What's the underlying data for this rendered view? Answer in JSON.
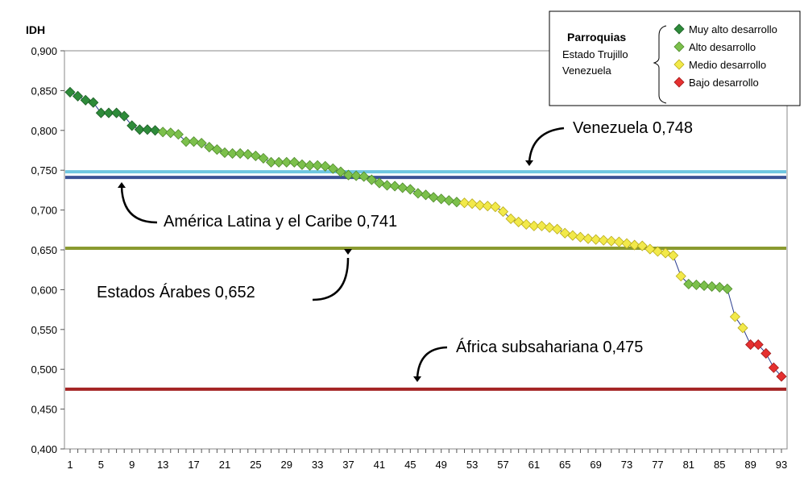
{
  "chart_data": {
    "type": "scatter",
    "ylabel": "IDH",
    "ylim": [
      0.4,
      0.9
    ],
    "xlim": [
      1,
      93
    ],
    "y_ticks": [
      "0,400",
      "0,450",
      "0,500",
      "0,550",
      "0,600",
      "0,650",
      "0,700",
      "0,750",
      "0,800",
      "0,850",
      "0,900"
    ],
    "x_ticks": [
      "1",
      "5",
      "9",
      "13",
      "17",
      "21",
      "25",
      "29",
      "33",
      "37",
      "41",
      "45",
      "49",
      "53",
      "57",
      "61",
      "65",
      "69",
      "73",
      "77",
      "81",
      "85",
      "89",
      "93"
    ],
    "grid": false,
    "connect_points": true,
    "legend": {
      "position": "top-right",
      "title": "Parroquias",
      "subtitle_lines": [
        "Estado Trujillo",
        "Venezuela"
      ],
      "entries": [
        {
          "label": "Muy alto desarrollo",
          "color": "#2e8b3a"
        },
        {
          "label": "Alto desarrollo",
          "color": "#7cc04c"
        },
        {
          "label": "Medio desarrollo",
          "color": "#f2e94a"
        },
        {
          "label": "Bajo desarrollo",
          "color": "#e53030"
        }
      ]
    },
    "categories": [
      "Muy alto desarrollo",
      "Alto desarrollo",
      "Medio desarrollo",
      "Bajo desarrollo"
    ],
    "values": [
      0.848,
      0.843,
      0.838,
      0.835,
      0.822,
      0.822,
      0.822,
      0.818,
      0.806,
      0.801,
      0.801,
      0.8,
      0.798,
      0.797,
      0.795,
      0.786,
      0.786,
      0.784,
      0.779,
      0.776,
      0.772,
      0.771,
      0.771,
      0.77,
      0.768,
      0.765,
      0.76,
      0.76,
      0.76,
      0.76,
      0.757,
      0.756,
      0.756,
      0.755,
      0.752,
      0.748,
      0.744,
      0.743,
      0.742,
      0.738,
      0.734,
      0.731,
      0.73,
      0.728,
      0.726,
      0.721,
      0.719,
      0.716,
      0.714,
      0.712,
      0.71,
      0.709,
      0.708,
      0.706,
      0.705,
      0.704,
      0.698,
      0.689,
      0.685,
      0.682,
      0.68,
      0.68,
      0.678,
      0.676,
      0.671,
      0.668,
      0.666,
      0.664,
      0.663,
      0.662,
      0.661,
      0.66,
      0.658,
      0.656,
      0.655,
      0.651,
      0.648,
      0.646,
      0.643,
      0.617,
      0.607,
      0.606,
      0.605,
      0.604,
      0.603,
      0.601,
      0.566,
      0.552,
      0.531,
      0.531,
      0.52,
      0.502,
      0.491
    ],
    "categories_per_point": [
      0,
      0,
      0,
      0,
      0,
      0,
      0,
      0,
      0,
      0,
      0,
      0,
      1,
      1,
      1,
      1,
      1,
      1,
      1,
      1,
      1,
      1,
      1,
      1,
      1,
      1,
      1,
      1,
      1,
      1,
      1,
      1,
      1,
      1,
      1,
      1,
      1,
      1,
      1,
      1,
      1,
      1,
      1,
      1,
      1,
      1,
      1,
      1,
      1,
      1,
      1,
      2,
      2,
      2,
      2,
      2,
      2,
      2,
      2,
      2,
      2,
      2,
      2,
      2,
      2,
      2,
      2,
      2,
      2,
      2,
      2,
      2,
      2,
      2,
      2,
      2,
      2,
      2,
      2,
      2,
      1,
      1,
      1,
      1,
      1,
      1,
      2,
      2,
      3,
      3,
      3,
      3,
      3
    ],
    "reference_lines": [
      {
        "label": "Venezuela  0,748",
        "value": 0.748,
        "color": "#6ec6e0"
      },
      {
        "label": "América Latina y el Caribe  0,741",
        "value": 0.741,
        "color": "#3b5296"
      },
      {
        "label": "Estados Árabes  0,652",
        "value": 0.652,
        "color": "#8a9a30"
      },
      {
        "label": "África subsahariana  0,475",
        "value": 0.475,
        "color": "#a42424"
      }
    ],
    "line_color": "#2b3d8f"
  }
}
